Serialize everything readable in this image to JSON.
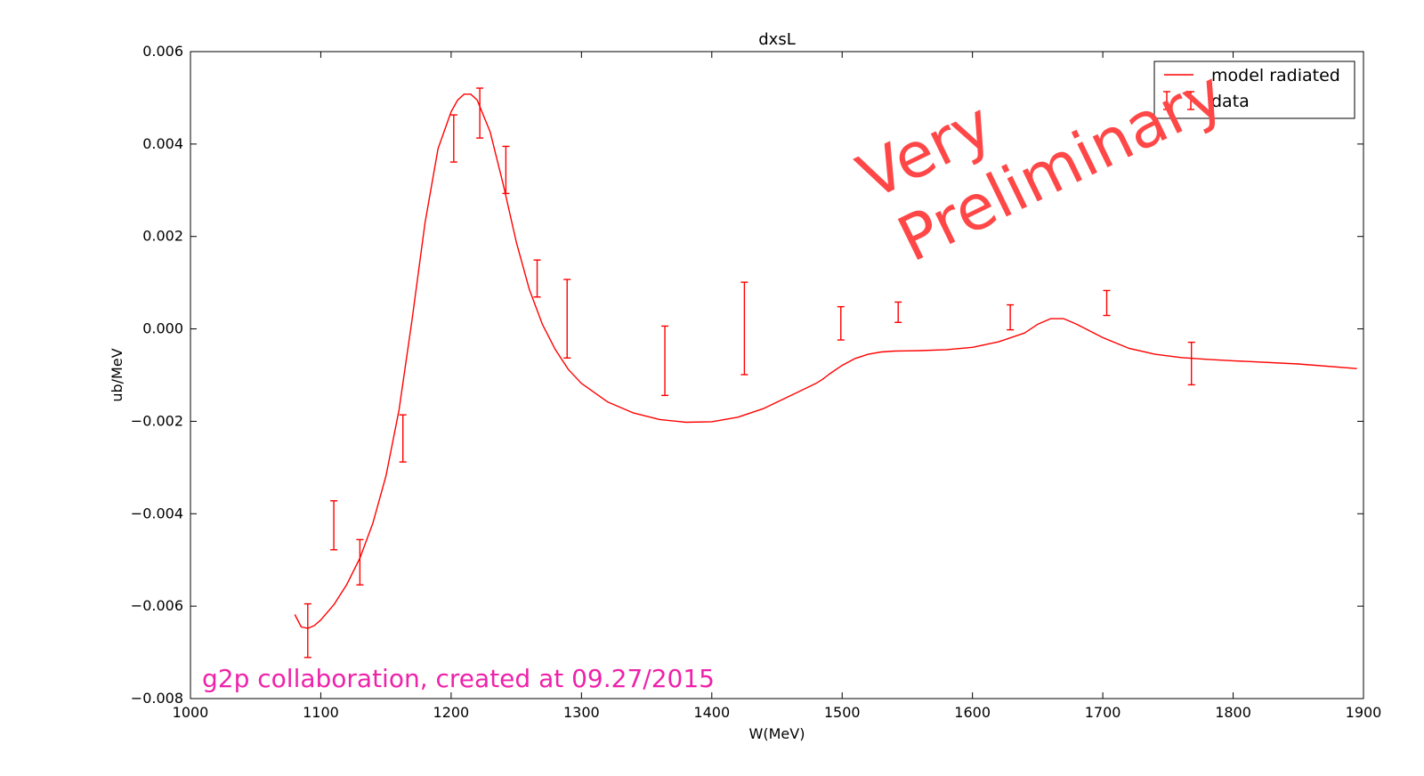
{
  "chart_data": {
    "type": "line",
    "title": "dxsL",
    "xlabel": "W(MeV)",
    "ylabel": "ub/MeV",
    "xlim": [
      1000,
      1900
    ],
    "ylim": [
      -0.008,
      0.006
    ],
    "xticks": [
      1000,
      1100,
      1200,
      1300,
      1400,
      1500,
      1600,
      1700,
      1800,
      1900
    ],
    "xtick_labels": [
      "1000",
      "1100",
      "1200",
      "1300",
      "1400",
      "1500",
      "1600",
      "1700",
      "1800",
      "1900"
    ],
    "yticks": [
      -0.008,
      -0.006,
      -0.004,
      -0.002,
      0.0,
      0.002,
      0.004,
      0.006
    ],
    "ytick_labels": [
      "−0.008",
      "−0.006",
      "−0.004",
      "−0.002",
      "0.000",
      "0.002",
      "0.004",
      "0.006"
    ],
    "grid": false,
    "legend_position": "top-right",
    "series": [
      {
        "name": "model radiated",
        "kind": "line",
        "color": "#ff0000",
        "x": [
          1080,
          1085,
          1090,
          1095,
          1100,
          1110,
          1120,
          1130,
          1140,
          1150,
          1160,
          1170,
          1180,
          1190,
          1200,
          1205,
          1210,
          1215,
          1220,
          1230,
          1240,
          1250,
          1260,
          1270,
          1280,
          1290,
          1300,
          1320,
          1340,
          1360,
          1380,
          1400,
          1420,
          1440,
          1460,
          1480,
          1485,
          1490,
          1500,
          1510,
          1520,
          1530,
          1540,
          1560,
          1580,
          1600,
          1620,
          1640,
          1650,
          1660,
          1670,
          1680,
          1700,
          1720,
          1740,
          1760,
          1780,
          1800,
          1850,
          1895
        ],
        "y": [
          -0.00618,
          -0.00645,
          -0.00648,
          -0.00642,
          -0.0063,
          -0.00597,
          -0.00553,
          -0.00496,
          -0.0042,
          -0.00318,
          -0.00176,
          0.0002,
          0.0023,
          0.0039,
          0.0047,
          0.00495,
          0.00508,
          0.00508,
          0.00495,
          0.00426,
          0.00312,
          0.00188,
          0.00085,
          0.0001,
          -0.00045,
          -0.00088,
          -0.00118,
          -0.00158,
          -0.00182,
          -0.00196,
          -0.00202,
          -0.00201,
          -0.00191,
          -0.00172,
          -0.00145,
          -0.00118,
          -0.00109,
          -0.00098,
          -0.00079,
          -0.00064,
          -0.00055,
          -0.0005,
          -0.00048,
          -0.00047,
          -0.00045,
          -0.0004,
          -0.00028,
          -9e-05,
          0.0001,
          0.00022,
          0.00022,
          0.0001,
          -0.00019,
          -0.00042,
          -0.00055,
          -0.00062,
          -0.00066,
          -0.00069,
          -0.00076,
          -0.00086
        ]
      },
      {
        "name": "data",
        "kind": "errorbar",
        "color": "#ff0000",
        "x": [
          1090,
          1110,
          1130,
          1163,
          1202,
          1222,
          1242,
          1266,
          1289,
          1364,
          1425,
          1499,
          1543,
          1629,
          1703,
          1768
        ],
        "y": [
          -0.00653,
          -0.00425,
          -0.00505,
          -0.00237,
          0.00412,
          0.00467,
          0.00344,
          0.00109,
          0.00022,
          -0.00069,
          1e-05,
          0.00012,
          0.00036,
          0.00025,
          0.00056,
          -0.00075
        ],
        "yerr": [
          0.00058,
          0.00053,
          0.00049,
          0.00051,
          0.00051,
          0.00054,
          0.00051,
          0.0004,
          0.00085,
          0.00075,
          0.001,
          0.00036,
          0.00022,
          0.00027,
          0.00027,
          0.00046
        ]
      }
    ],
    "annotations": [
      {
        "text": "Very",
        "color": "#ff4747"
      },
      {
        "text": "Preliminary",
        "color": "#ff4747"
      },
      {
        "text": "g2p collaboration, created at 09.27/2015",
        "color": "#ee22aa"
      }
    ]
  }
}
